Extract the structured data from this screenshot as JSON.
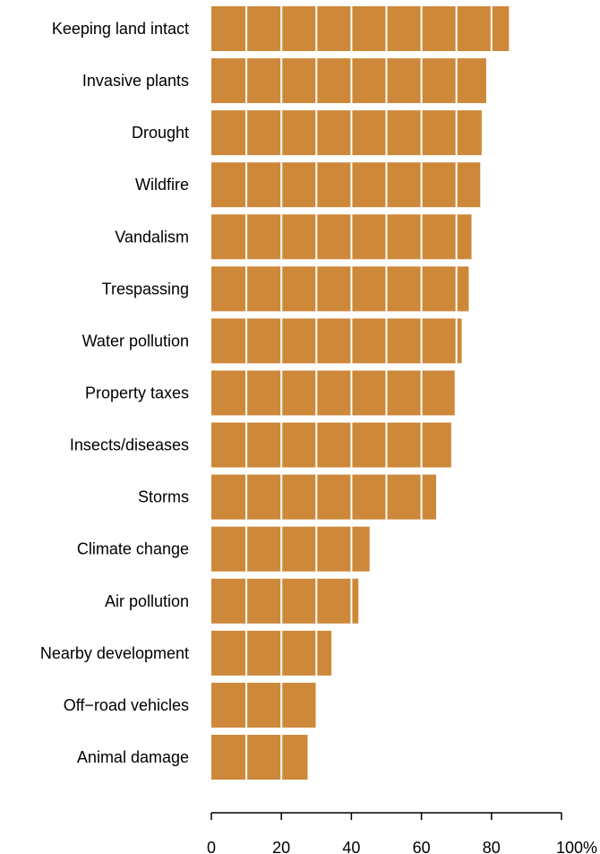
{
  "chart_data": {
    "type": "bar",
    "orientation": "horizontal",
    "categories": [
      "Keeping land intact",
      "Invasive plants",
      "Drought",
      "Wildfire",
      "Vandalism",
      "Trespassing",
      "Water pollution",
      "Property taxes",
      "Insects/diseases",
      "Storms",
      "Climate change",
      "Air pollution",
      "Nearby development",
      "Off−road vehicles",
      "Animal damage"
    ],
    "values": [
      85,
      78.5,
      77.2,
      76.8,
      74.3,
      73.5,
      71.5,
      69.5,
      68.5,
      64.2,
      45.2,
      42,
      34.3,
      29.8,
      27.5
    ],
    "xlim": [
      0,
      100
    ],
    "x_ticks": [
      0,
      20,
      40,
      60,
      80,
      100
    ],
    "x_tick_labels": [
      "0",
      "20",
      "40",
      "60",
      "80",
      "100%"
    ],
    "grid": "vertical white lines every 10 units drawn over bars",
    "bar_color": "#CD883A",
    "grid_color": "#FFFFFF",
    "title": "",
    "xlabel": "",
    "ylabel": ""
  }
}
